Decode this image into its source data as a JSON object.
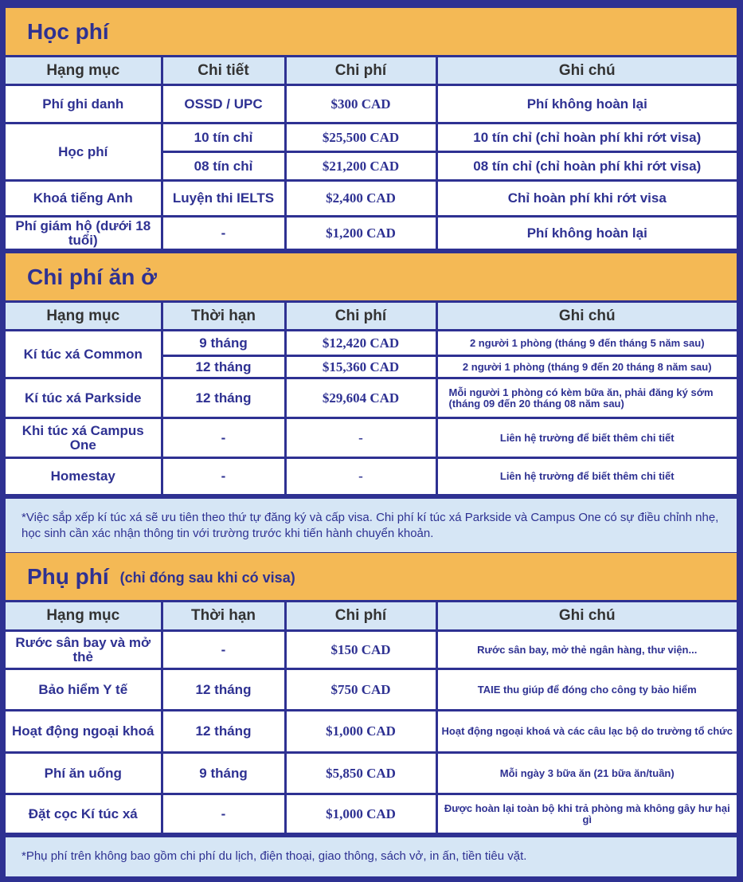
{
  "colors": {
    "background": "#2e3192",
    "band": "#f4b955",
    "header": "#d6e6f5",
    "text": "#2e3192"
  },
  "sections": [
    {
      "title": "Học phí",
      "subtitle": "",
      "headers": [
        "Hạng mục",
        "Chi tiết",
        "Chi phí",
        "Ghi chú"
      ],
      "groups": [
        {
          "item": "Phí ghi danh",
          "rows": [
            {
              "detail": "OSSD / UPC",
              "cost": "$300 CAD",
              "note": "Phí không hoàn lại"
            }
          ]
        },
        {
          "item": "Học phí",
          "rows": [
            {
              "detail": "10 tín chỉ",
              "cost": "$25,500 CAD",
              "note": "10 tín chỉ (chỉ hoàn phí khi rớt visa)"
            },
            {
              "detail": "08 tín chỉ",
              "cost": "$21,200 CAD",
              "note": "08 tín chỉ (chỉ hoàn phí khi rớt visa)"
            }
          ]
        },
        {
          "item": "Khoá tiếng Anh",
          "rows": [
            {
              "detail": "Luyện thi IELTS",
              "cost": "$2,400 CAD",
              "note": "Chỉ hoàn phí khi rớt visa"
            }
          ]
        },
        {
          "item": "Phí giám hộ (dưới 18 tuổi)",
          "rows": [
            {
              "detail": "-",
              "cost": "$1,200 CAD",
              "note": "Phí không hoàn lại"
            }
          ]
        }
      ],
      "footnote": ""
    },
    {
      "title": "Chi phí ăn ở",
      "subtitle": "",
      "headers": [
        "Hạng mục",
        "Thời hạn",
        "Chi phí",
        "Ghi chú"
      ],
      "groups": [
        {
          "item": "Kí túc xá Common",
          "rows": [
            {
              "detail": "9 tháng",
              "cost": "$12,420 CAD",
              "note": "2 người 1 phòng (tháng 9 đến tháng 5 năm sau)"
            },
            {
              "detail": "12 tháng",
              "cost": "$15,360 CAD",
              "note": "2 người 1 phòng (tháng 9 đến 20 tháng 8 năm sau)"
            }
          ]
        },
        {
          "item": "Kí túc xá Parkside",
          "rows": [
            {
              "detail": "12 tháng",
              "cost": "$29,604 CAD",
              "note": "Mỗi người 1 phòng có kèm bữa ăn, phải đăng ký sớm (tháng 09 đến 20 tháng 08 năm sau)"
            }
          ]
        },
        {
          "item": "Khi túc xá Campus One",
          "rows": [
            {
              "detail": "-",
              "cost": "-",
              "note": "Liên hệ trường để biết thêm chi tiết"
            }
          ]
        },
        {
          "item": "Homestay",
          "rows": [
            {
              "detail": "-",
              "cost": "-",
              "note": "Liên hệ trường để biết thêm chi tiết"
            }
          ]
        }
      ],
      "footnote": "*Việc sắp xếp kí túc xá sẽ ưu tiên theo thứ tự đăng ký và cấp visa. Chi phí kí túc xá Parkside và Campus One có sự điều chỉnh nhẹ, học sinh cần xác nhận thông tin với trường trước khi tiến hành chuyển khoản."
    },
    {
      "title": "Phụ phí",
      "subtitle": "(chỉ đóng sau khi có visa)",
      "headers": [
        "Hạng mục",
        "Thời hạn",
        "Chi phí",
        "Ghi chú"
      ],
      "groups": [
        {
          "item": "Rước sân bay và mở thẻ",
          "rows": [
            {
              "detail": "-",
              "cost": "$150 CAD",
              "note": "Rước sân bay, mở thẻ ngân hàng, thư viện..."
            }
          ]
        },
        {
          "item": "Bảo hiểm Y tế",
          "rows": [
            {
              "detail": "12 tháng",
              "cost": "$750 CAD",
              "note": "TAIE thu giúp để đóng cho công ty bảo hiểm"
            }
          ]
        },
        {
          "item": "Hoạt động ngoại khoá",
          "rows": [
            {
              "detail": "12 tháng",
              "cost": "$1,000 CAD",
              "note": "Hoạt động ngoại khoá và các câu lạc bộ do trường tổ chức"
            }
          ]
        },
        {
          "item": "Phí ăn uống",
          "rows": [
            {
              "detail": "9 tháng",
              "cost": "$5,850 CAD",
              "note": "Mỗi ngày 3 bữa ăn (21 bữa ăn/tuần)"
            }
          ]
        },
        {
          "item": "Đặt cọc Kí túc xá",
          "rows": [
            {
              "detail": "-",
              "cost": "$1,000 CAD",
              "note": "Được hoàn lại toàn bộ khi trả phòng mà không gây hư hại gì"
            }
          ]
        }
      ],
      "footnote": "*Phụ phí trên không bao gồm chi phí du lịch, điện thoại, giao thông, sách vở, in ấn, tiền tiêu vặt."
    }
  ]
}
